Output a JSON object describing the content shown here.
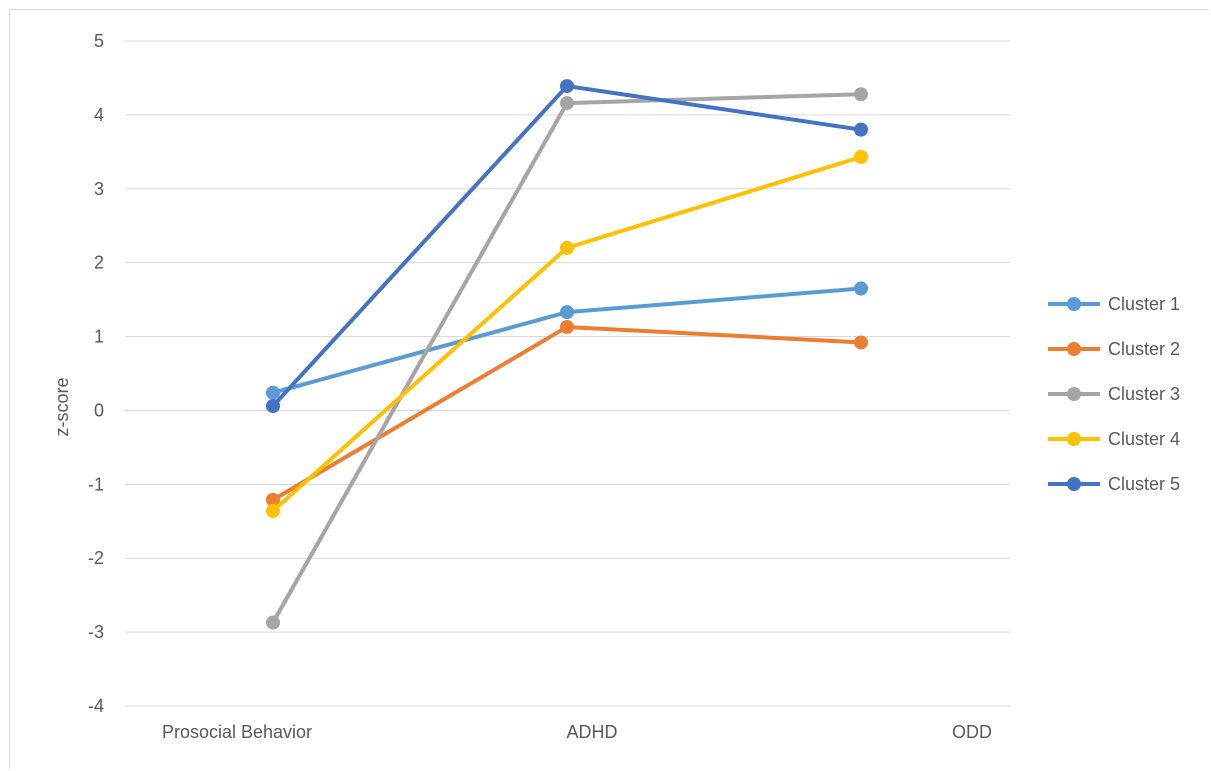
{
  "chart_data": {
    "type": "line",
    "title": "",
    "xlabel": "",
    "ylabel": "z-score",
    "ylim": [
      -4,
      5
    ],
    "yticks": [
      5,
      4,
      3,
      2,
      1,
      0,
      -1,
      -2,
      -3,
      -4
    ],
    "categories": [
      "Prosocial Behavior",
      "ADHD",
      "ODD"
    ],
    "grid": true,
    "legend_position": "right",
    "series": [
      {
        "name": "Cluster 1",
        "color": "#5b9bd5",
        "values": [
          0.24,
          1.33,
          1.65
        ]
      },
      {
        "name": "Cluster 2",
        "color": "#ed7d31",
        "values": [
          -1.21,
          1.13,
          0.92
        ]
      },
      {
        "name": "Cluster 3",
        "color": "#a5a5a5",
        "values": [
          -2.87,
          4.16,
          4.28
        ]
      },
      {
        "name": "Cluster 4",
        "color": "#ffc000",
        "values": [
          -1.36,
          2.2,
          3.43
        ]
      },
      {
        "name": "Cluster 5",
        "color": "#4472c4",
        "values": [
          0.06,
          4.39,
          3.8
        ]
      }
    ]
  }
}
